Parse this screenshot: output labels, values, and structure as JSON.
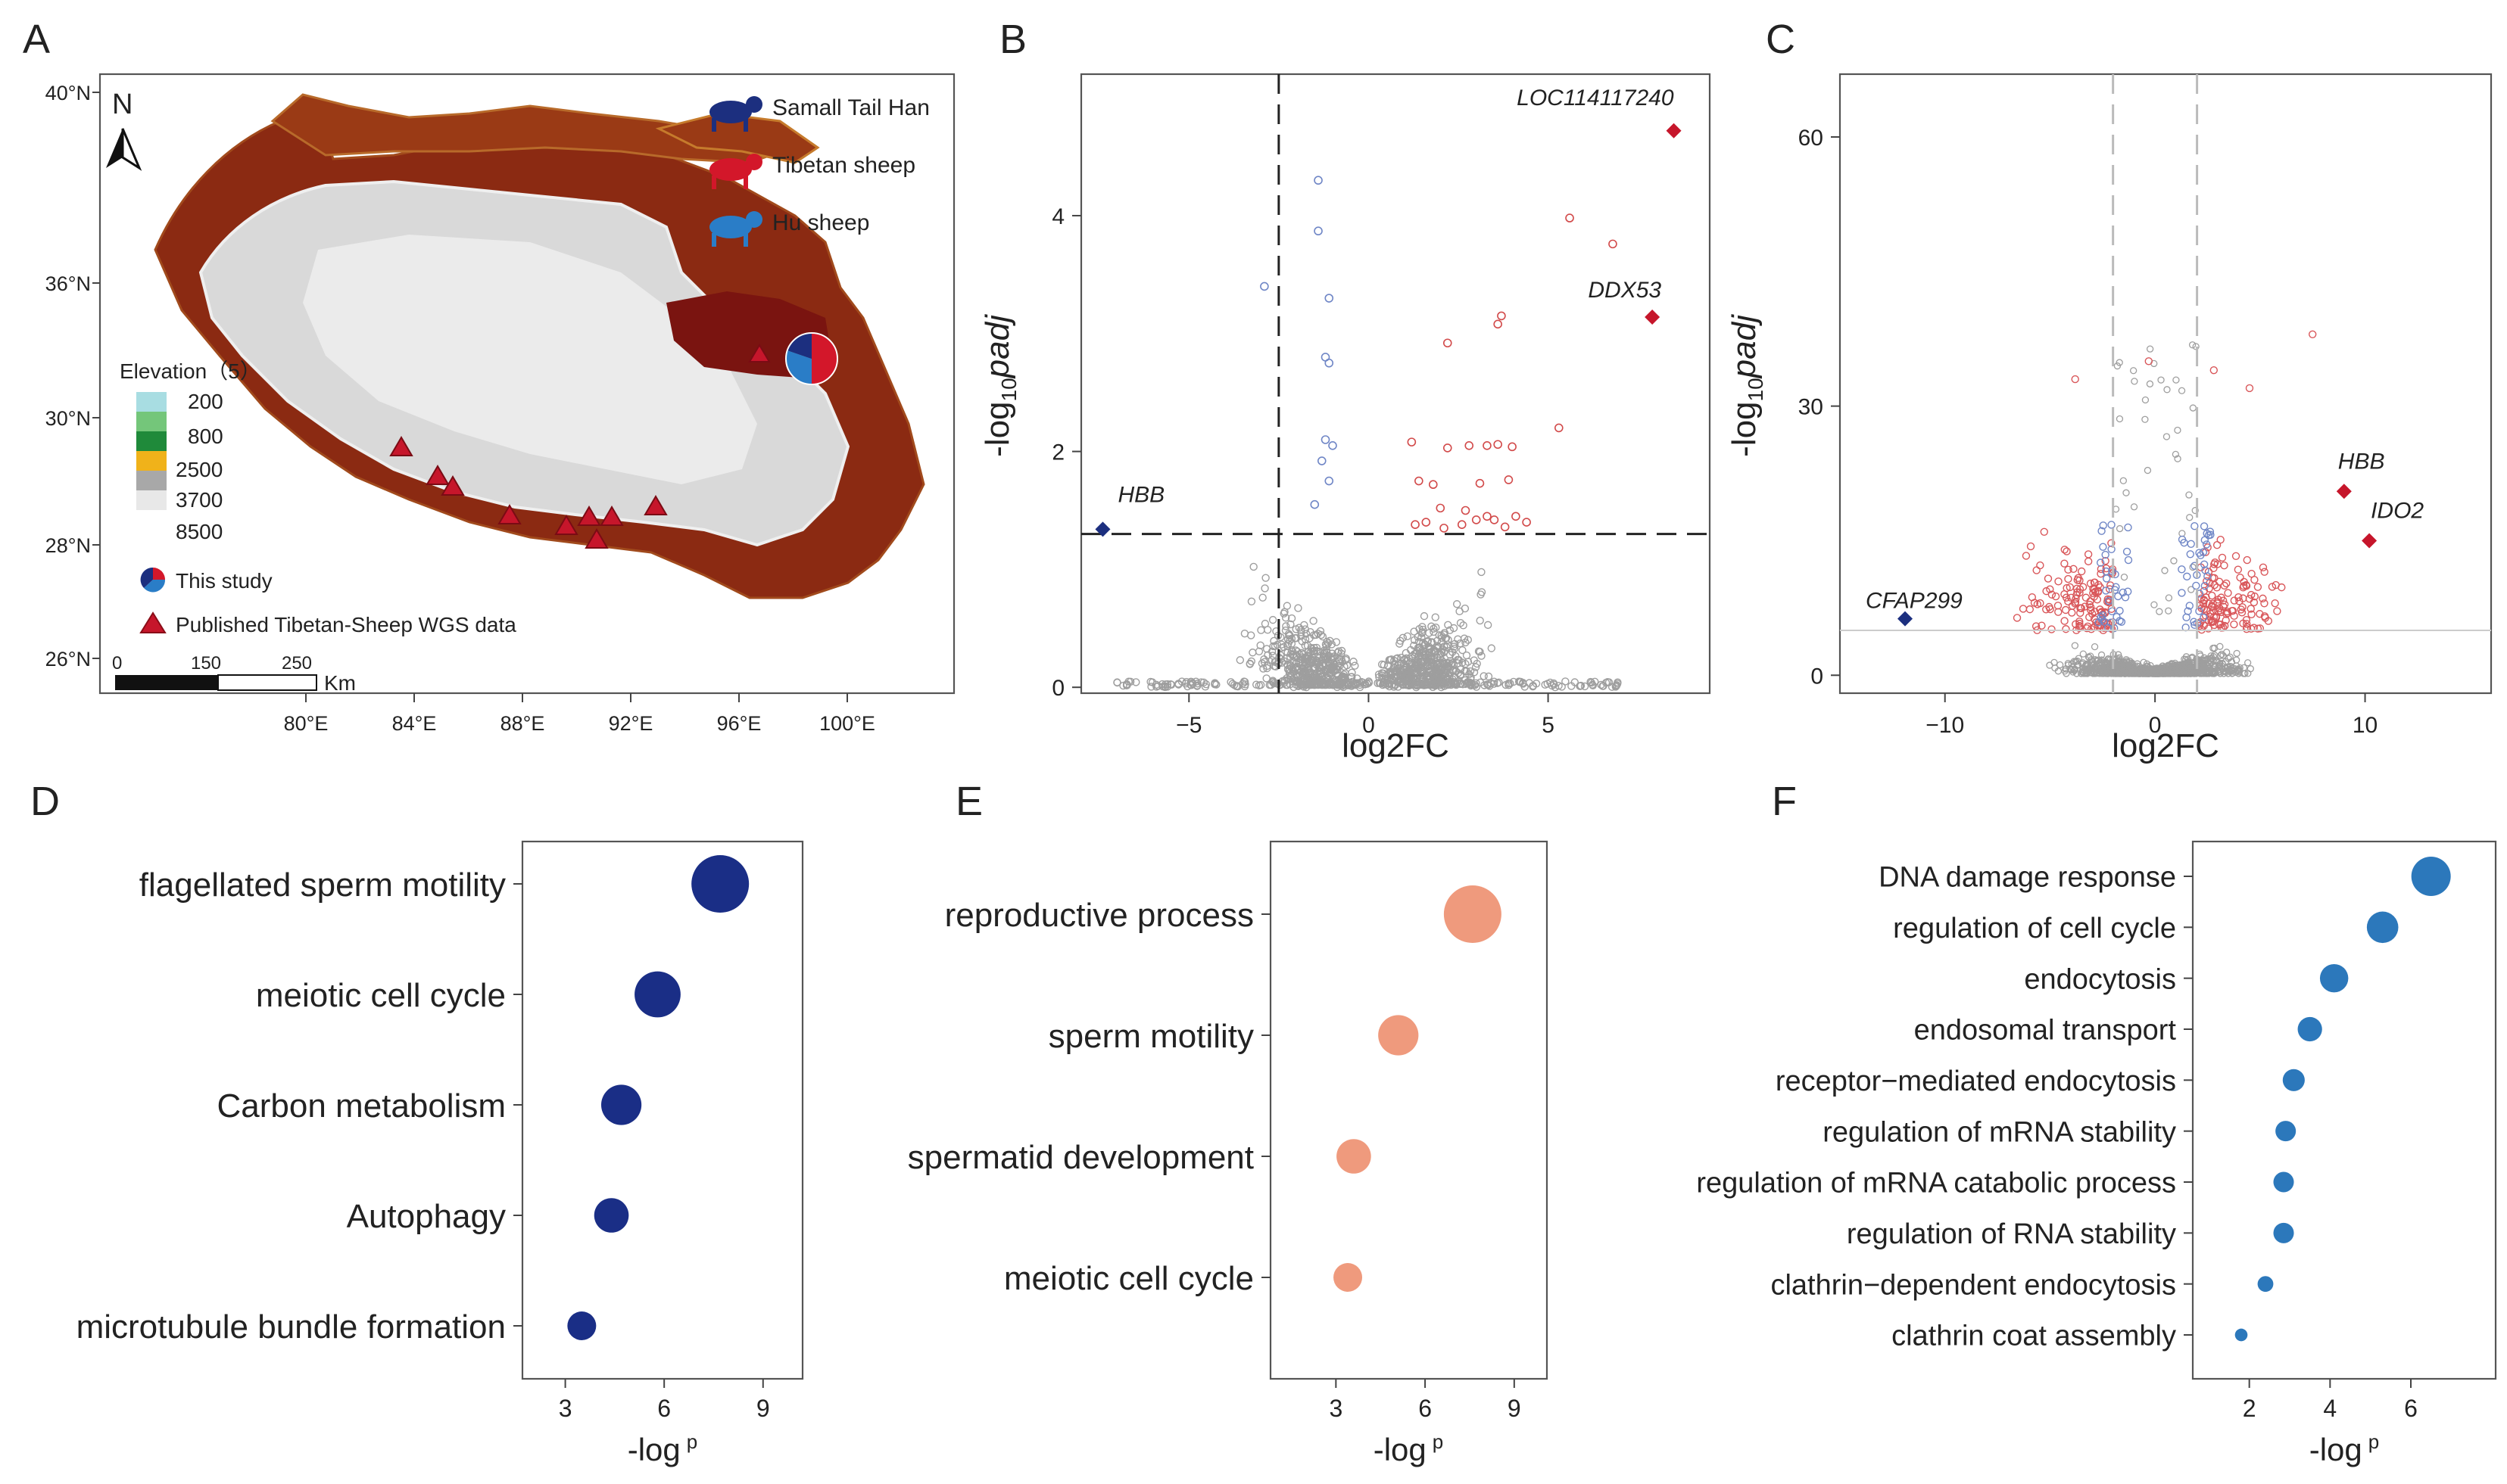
{
  "panels": {
    "A": "A",
    "B": "B",
    "C": "C",
    "D": "D",
    "E": "E",
    "F": "F"
  },
  "map": {
    "north": "N",
    "lat_ticks": [
      "40°N",
      "36°N",
      "30°N",
      "28°N",
      "26°N"
    ],
    "lon_ticks": [
      "80°E",
      "84°E",
      "88°E",
      "92°E",
      "96°E",
      "100°E"
    ],
    "legend_breeds": [
      "Samall Tail Han",
      "Tibetan sheep",
      "Hu sheep"
    ],
    "breed_colors": [
      "#1c2f7f",
      "#d3172a",
      "#2a7dc7"
    ],
    "elevation_title": "Elevation（5）",
    "elevation_levels": [
      "200",
      "800",
      "2500",
      "3700",
      "8500"
    ],
    "elevation_colors": [
      "#a8dde2",
      "#74c67a",
      "#1f8a3a",
      "#f0b21a",
      "#a8a8a8",
      "#e8e8e8"
    ],
    "this_study": "This study",
    "published": "Published Tibetan-Sheep  WGS data",
    "scale_ticks": [
      "0",
      "150",
      "250"
    ],
    "scale_unit": "Km"
  },
  "volcanoB": {
    "ylabel_pre": "-log",
    "ylabel_sub": "10",
    "ylabel_post": "padj",
    "xlabel": "log2FC",
    "x_ticks": [
      "−5",
      "0",
      "5"
    ],
    "y_ticks": [
      "0",
      "2",
      "4"
    ],
    "labels": [
      "HBB",
      "LOC114117240",
      "DDX53"
    ]
  },
  "volcanoC": {
    "ylabel_pre": "-log",
    "ylabel_sub": "10",
    "ylabel_post": "padj",
    "xlabel": "log2FC",
    "x_ticks": [
      "−10",
      "0",
      "10"
    ],
    "y_ticks": [
      "0",
      "30",
      "60"
    ],
    "labels": [
      "CFAP299",
      "HBB",
      "IDO2"
    ]
  },
  "dotD": {
    "xlabel_pre": "-log",
    "xlabel_sup": "p",
    "x_ticks": [
      "3",
      "6",
      "9"
    ],
    "color": "#1a2e86",
    "terms": [
      "flagellated sperm motility",
      "meiotic cell cycle",
      "Carbon metabolism",
      "Autophagy",
      "microtubule bundle formation"
    ]
  },
  "dotE": {
    "xlabel_pre": "-log",
    "xlabel_sup": "p",
    "x_ticks": [
      "3",
      "6",
      "9"
    ],
    "color": "#ef9a7d",
    "terms": [
      "reproductive process",
      "sperm motility",
      "spermatid development",
      "meiotic cell cycle"
    ]
  },
  "dotF": {
    "xlabel_pre": "-log",
    "xlabel_sup": "p",
    "x_ticks": [
      "2",
      "4",
      "6"
    ],
    "color": "#2c78bb",
    "terms": [
      "DNA damage response",
      "regulation of cell cycle",
      "endocytosis",
      "endosomal transport",
      "receptor−mediated endocytosis",
      "regulation of mRNA stability",
      "regulation of mRNA catabolic process",
      "regulation of RNA stability",
      "clathrin−dependent endocytosis",
      "clathrin coat assembly"
    ]
  },
  "chart_data": [
    {
      "type": "scatter",
      "title": "B",
      "xlabel": "log2FC",
      "ylabel": "-log10 padj",
      "xlim": [
        -8,
        9.5
      ],
      "ylim": [
        -0.05,
        5.2
      ],
      "thresholds": {
        "x": -2.5,
        "y": 1.3
      },
      "highlight": [
        {
          "label": "HBB",
          "x": -7.4,
          "y": 1.34,
          "color": "#1c2f7f"
        },
        {
          "label": "LOC114117240",
          "x": 8.5,
          "y": 4.72,
          "color": "#c6162b"
        },
        {
          "label": "DDX53",
          "x": 7.9,
          "y": 3.14,
          "color": "#c6162b"
        }
      ],
      "points_up": [
        [
          5.6,
          3.98
        ],
        [
          6.8,
          3.76
        ],
        [
          3.6,
          3.08
        ],
        [
          3.7,
          3.15
        ],
        [
          2.2,
          2.92
        ],
        [
          5.3,
          2.2
        ],
        [
          1.2,
          2.08
        ],
        [
          2.2,
          2.03
        ],
        [
          2.8,
          2.05
        ],
        [
          3.3,
          2.05
        ],
        [
          3.6,
          2.06
        ],
        [
          4.0,
          2.04
        ],
        [
          1.4,
          1.75
        ],
        [
          1.8,
          1.72
        ],
        [
          3.1,
          1.73
        ],
        [
          3.9,
          1.76
        ],
        [
          2.7,
          1.5
        ],
        [
          2.0,
          1.52
        ],
        [
          3.3,
          1.45
        ],
        [
          1.6,
          1.4
        ],
        [
          2.6,
          1.38
        ],
        [
          3.0,
          1.42
        ],
        [
          3.5,
          1.42
        ],
        [
          4.1,
          1.45
        ],
        [
          4.4,
          1.4
        ],
        [
          1.3,
          1.38
        ],
        [
          2.1,
          1.35
        ],
        [
          3.8,
          1.36
        ]
      ],
      "points_down": [
        [
          -1.4,
          4.3
        ],
        [
          -1.4,
          3.87
        ],
        [
          -2.9,
          3.4
        ],
        [
          -1.1,
          3.3
        ],
        [
          -1.2,
          2.8
        ],
        [
          -1.1,
          2.75
        ],
        [
          -1.2,
          2.1
        ],
        [
          -1.0,
          2.05
        ],
        [
          -1.3,
          1.92
        ],
        [
          -1.1,
          1.75
        ],
        [
          -1.5,
          1.55
        ]
      ]
    },
    {
      "type": "scatter",
      "title": "C",
      "xlabel": "log2FC",
      "ylabel": "-log10 padj",
      "xlim": [
        -15,
        16
      ],
      "ylim": [
        -2,
        67
      ],
      "thresholds": {
        "x": [
          -2,
          2
        ],
        "y": 5
      },
      "highlight": [
        {
          "label": "CFAP299",
          "x": -11.9,
          "y": 6.3,
          "color": "#1c2f7f"
        },
        {
          "label": "HBB",
          "x": 9.0,
          "y": 20.5,
          "color": "#c6162b"
        },
        {
          "label": "IDO2",
          "x": 10.2,
          "y": 15.0,
          "color": "#c6162b"
        }
      ]
    },
    {
      "type": "scatter",
      "title": "D",
      "xlabel": "-log p",
      "categories": [
        "flagellated sperm motility",
        "meiotic cell cycle",
        "Carbon metabolism",
        "Autophagy",
        "microtubule bundle formation"
      ],
      "values": [
        7.7,
        5.8,
        4.7,
        4.4,
        3.5
      ],
      "sizes": [
        5,
        4,
        3.5,
        3,
        2.5
      ],
      "xlim": [
        1.7,
        10.2
      ]
    },
    {
      "type": "scatter",
      "title": "E",
      "xlabel": "-log p",
      "categories": [
        "reproductive process",
        "sperm motility",
        "spermatid development",
        "meiotic cell cycle"
      ],
      "values": [
        7.6,
        5.1,
        3.6,
        3.4
      ],
      "sizes": [
        5,
        3.5,
        3,
        2.5
      ],
      "xlim": [
        0.8,
        10.1
      ]
    },
    {
      "type": "scatter",
      "title": "F",
      "xlabel": "-log p",
      "categories": [
        "DNA damage response",
        "regulation of cell cycle",
        "endocytosis",
        "endosomal transport",
        "receptor−mediated endocytosis",
        "regulation of mRNA stability",
        "regulation of mRNA catabolic process",
        "regulation of RNA stability",
        "clathrin−dependent endocytosis",
        "clathrin coat assembly"
      ],
      "values": [
        6.5,
        5.3,
        4.1,
        3.5,
        3.1,
        2.9,
        2.85,
        2.85,
        2.4,
        1.8
      ],
      "sizes": [
        5,
        4,
        3.6,
        3.1,
        2.8,
        2.6,
        2.6,
        2.6,
        2.0,
        1.6
      ],
      "xlim": [
        0.6,
        8.1
      ]
    }
  ]
}
